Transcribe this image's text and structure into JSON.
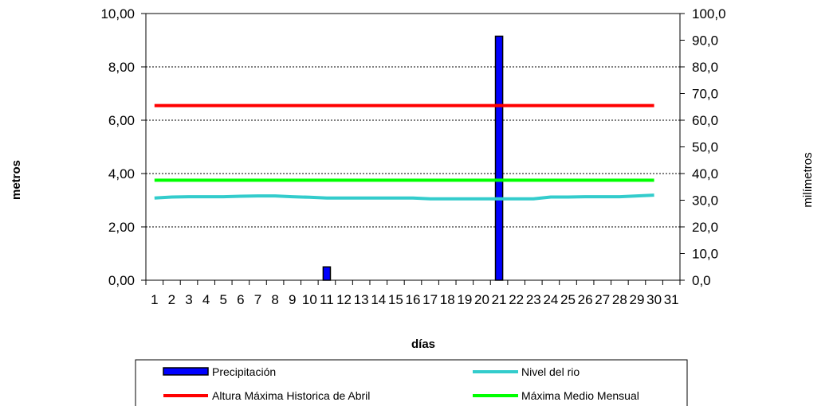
{
  "chart_data": {
    "type": "bar+line",
    "xlabel": "días",
    "ylabel_left": "metros",
    "ylabel_right": "milímetros",
    "categories": [
      "1",
      "2",
      "3",
      "4",
      "5",
      "6",
      "7",
      "8",
      "9",
      "10",
      "11",
      "12",
      "13",
      "14",
      "15",
      "16",
      "17",
      "18",
      "19",
      "20",
      "21",
      "22",
      "23",
      "24",
      "25",
      "26",
      "27",
      "28",
      "29",
      "30",
      "31"
    ],
    "y_left": {
      "min": 0,
      "max": 10,
      "step": 2,
      "tick_labels": [
        "0,00",
        "2,00",
        "4,00",
        "6,00",
        "8,00",
        "10,00"
      ]
    },
    "y_right": {
      "min": 0,
      "max": 100,
      "step": 10,
      "tick_labels": [
        "0,0",
        "10,0",
        "20,0",
        "30,0",
        "40,0",
        "50,0",
        "60,0",
        "70,0",
        "80,0",
        "90,0",
        "100,0"
      ]
    },
    "grid": true,
    "legend_placement": "bottom",
    "series": [
      {
        "name": "Precipitación",
        "kind": "bar",
        "axis": "right",
        "color": "#0000ff",
        "values": [
          0,
          0,
          0,
          0,
          0,
          0,
          0,
          0,
          0,
          0,
          5,
          0,
          0,
          0,
          0,
          0,
          0,
          0,
          0,
          0,
          91.5,
          0,
          0,
          0,
          0,
          0,
          0,
          0,
          0,
          0,
          null
        ]
      },
      {
        "name": "Nivel del rio",
        "kind": "line",
        "axis": "left",
        "color": "#33cccc",
        "values": [
          3.08,
          3.12,
          3.13,
          3.13,
          3.13,
          3.15,
          3.16,
          3.16,
          3.13,
          3.11,
          3.08,
          3.08,
          3.08,
          3.08,
          3.08,
          3.08,
          3.05,
          3.05,
          3.05,
          3.05,
          3.05,
          3.05,
          3.05,
          3.12,
          3.12,
          3.13,
          3.13,
          3.13,
          3.16,
          3.19,
          null
        ]
      },
      {
        "name": "Altura Máxima Historica de Abril",
        "kind": "line",
        "axis": "left",
        "color": "#ff0000",
        "values": [
          6.55,
          6.55,
          6.55,
          6.55,
          6.55,
          6.55,
          6.55,
          6.55,
          6.55,
          6.55,
          6.55,
          6.55,
          6.55,
          6.55,
          6.55,
          6.55,
          6.55,
          6.55,
          6.55,
          6.55,
          6.55,
          6.55,
          6.55,
          6.55,
          6.55,
          6.55,
          6.55,
          6.55,
          6.55,
          6.55,
          null
        ]
      },
      {
        "name": "Máxima Medio Mensual",
        "kind": "line",
        "axis": "left",
        "color": "#00ff00",
        "values": [
          3.75,
          3.75,
          3.75,
          3.75,
          3.75,
          3.75,
          3.75,
          3.75,
          3.75,
          3.75,
          3.75,
          3.75,
          3.75,
          3.75,
          3.75,
          3.75,
          3.75,
          3.75,
          3.75,
          3.75,
          3.75,
          3.75,
          3.75,
          3.75,
          3.75,
          3.75,
          3.75,
          3.75,
          3.75,
          3.75,
          null
        ]
      }
    ]
  }
}
